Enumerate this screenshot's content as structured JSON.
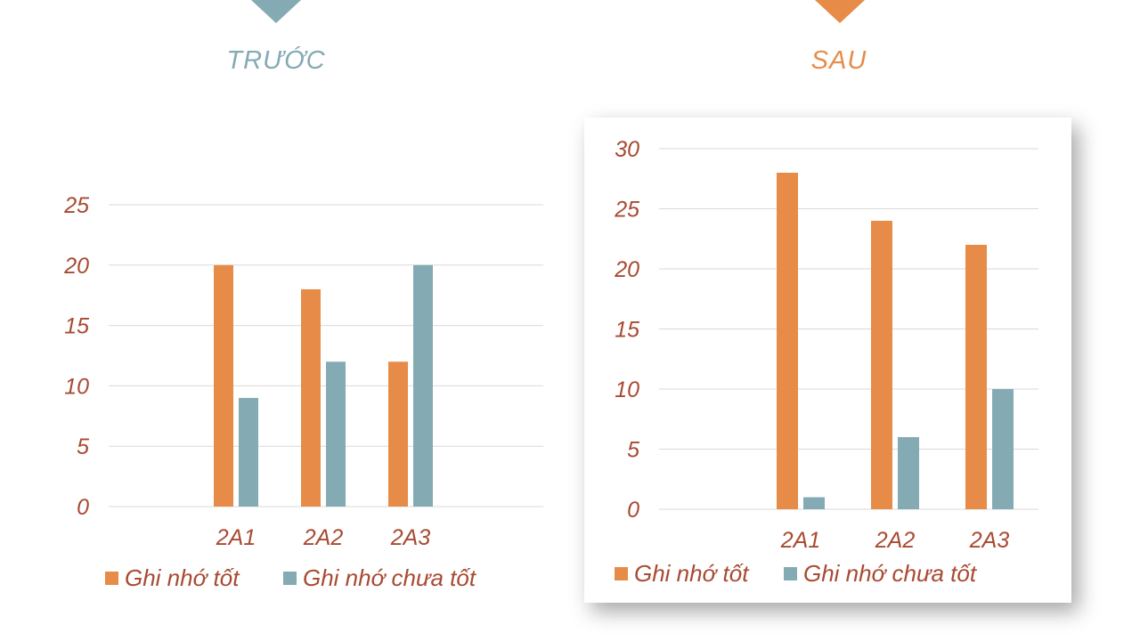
{
  "colors": {
    "good": "#e68c48",
    "not_good": "#84aab4",
    "text": "#a84a32",
    "grid": "#d9d9d9"
  },
  "headings": {
    "before": "TRƯỚC",
    "after": "SAU"
  },
  "chart_data": [
    {
      "type": "bar",
      "title": "",
      "categories": [
        "2A1",
        "2A2",
        "2A3"
      ],
      "series": [
        {
          "name": "Ghi nhớ tốt",
          "values": [
            20,
            18,
            12
          ]
        },
        {
          "name": "Ghi nhớ chưa tốt",
          "values": [
            9,
            12,
            20
          ]
        }
      ],
      "ylim": [
        0,
        25
      ],
      "yticks": [
        0,
        5,
        10,
        15,
        20,
        25
      ],
      "grid": true,
      "legend": "bottom"
    },
    {
      "type": "bar",
      "title": "",
      "categories": [
        "2A1",
        "2A2",
        "2A3"
      ],
      "series": [
        {
          "name": "Ghi nhớ tốt",
          "values": [
            28,
            24,
            22
          ]
        },
        {
          "name": "Ghi nhớ chưa tốt",
          "values": [
            1,
            6,
            10
          ]
        }
      ],
      "ylim": [
        0,
        30
      ],
      "yticks": [
        0,
        5,
        10,
        15,
        20,
        25,
        30
      ],
      "grid": true,
      "legend": "bottom"
    }
  ]
}
